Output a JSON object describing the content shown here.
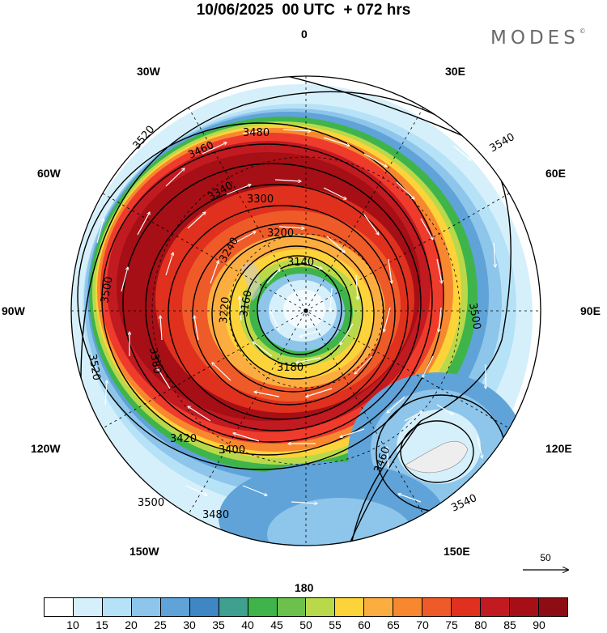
{
  "title": "10/06/2025  00 UTC  + 072 hrs",
  "brand": "MODES",
  "brand_mark": "©",
  "map": {
    "projection": "polar-stereographic-south",
    "longitude_labels": {
      "top": "0",
      "top_left": "30W",
      "top_right": "30E",
      "upper_left": "60W",
      "upper_right": "60E",
      "left": "90W",
      "right": "90E",
      "lower_left": "120W",
      "lower_right": "120E",
      "bottom_left": "150W",
      "bottom_right": "150E",
      "bottom": "180"
    },
    "contour_labels": [
      "3140",
      "3160",
      "3180",
      "3200",
      "3220",
      "3240",
      "3300",
      "3340",
      "3380",
      "3400",
      "3420",
      "3460",
      "3480",
      "3500",
      "3520",
      "3540"
    ],
    "wind_vector_reference": "50",
    "colors": {
      "jet_core": "#a50f15",
      "jet_edge": "#ef3b2c",
      "mid_speed": "#fdd33a",
      "green_band": "#3fb44a",
      "low_speed": "#6baed6",
      "land": "#eeeeee",
      "contour": "#000000",
      "vectors": "#ffffff"
    }
  },
  "colorbar": {
    "colors": [
      "#ffffff",
      "#d6f0fb",
      "#b6e2f7",
      "#8ec5ea",
      "#5fa3d8",
      "#3f86c4",
      "#40a090",
      "#3fb44a",
      "#6cc14d",
      "#b9d94a",
      "#fdd33a",
      "#fcad40",
      "#f7882f",
      "#ef5a29",
      "#e0301e",
      "#c11a20",
      "#a50f15",
      "#8c0d13"
    ],
    "ticks": [
      "10",
      "15",
      "20",
      "25",
      "30",
      "35",
      "40",
      "45",
      "50",
      "55",
      "60",
      "65",
      "70",
      "75",
      "80",
      "85",
      "90"
    ]
  }
}
